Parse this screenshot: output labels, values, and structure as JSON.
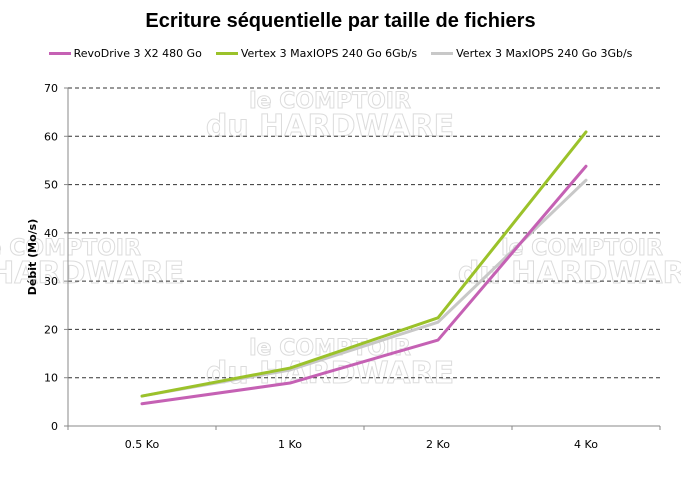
{
  "chart_data": {
    "type": "line",
    "title": "Ecriture séquentielle par taille de fichiers",
    "xlabel": "",
    "ylabel": "Débit (Mo/s)",
    "categories": [
      "0.5 Ko",
      "1 Ko",
      "2 Ko",
      "4 Ko"
    ],
    "ylim": [
      0,
      70
    ],
    "yticks": [
      0,
      10,
      20,
      30,
      40,
      50,
      60,
      70
    ],
    "grid": true,
    "legend_position": "top",
    "series": [
      {
        "name": "RevoDrive 3 X2 480 Go",
        "color": "#c561b4",
        "values": [
          4.6,
          8.9,
          17.8,
          53.8
        ]
      },
      {
        "name": "Vertex 3 MaxIOPS 240 Go 6Gb/s",
        "color": "#9bc22a",
        "values": [
          6.2,
          12.0,
          22.4,
          60.9
        ]
      },
      {
        "name": "Vertex 3 MaxIOPS 240 Go 3Gb/s",
        "color": "#c8c8c8",
        "values": [
          6.2,
          11.6,
          21.5,
          50.9
        ]
      }
    ],
    "watermark": [
      "le COMPTOIR",
      "du HARDWARE"
    ]
  }
}
